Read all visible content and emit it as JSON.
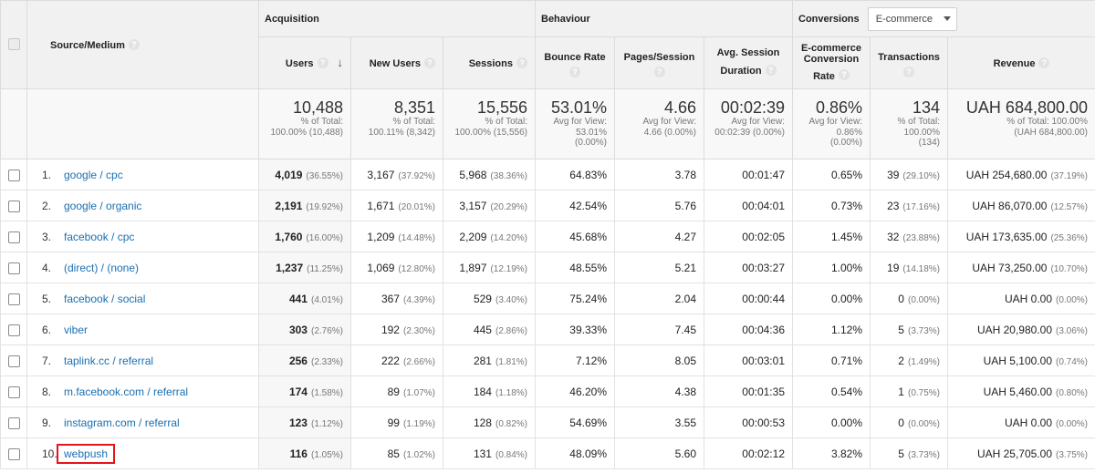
{
  "groups": {
    "acquisition": "Acquisition",
    "behaviour": "Behaviour",
    "conversions": "Conversions",
    "conversions_dropdown": "E-commerce"
  },
  "columns": {
    "source_medium": "Source/Medium",
    "users": "Users",
    "new_users": "New Users",
    "sessions": "Sessions",
    "bounce_rate": "Bounce Rate",
    "pages_session": "Pages/Session",
    "avg_session_l1": "Avg. Session",
    "avg_session_l2": "Duration",
    "ecr_l1": "E-commerce",
    "ecr_l2": "Conversion",
    "ecr_l3": "Rate",
    "transactions": "Transactions",
    "revenue": "Revenue"
  },
  "help_glyph": "?",
  "sort_glyph": "↓",
  "totals": {
    "users": {
      "value": "10,488",
      "l1": "% of Total:",
      "l2": "100.00% (10,488)"
    },
    "new_users": {
      "value": "8,351",
      "l1": "% of Total:",
      "l2": "100.11% (8,342)"
    },
    "sessions": {
      "value": "15,556",
      "l1": "% of Total:",
      "l2": "100.00% (15,556)"
    },
    "bounce_rate": {
      "value": "53.01%",
      "l1": "Avg for View:",
      "l2": "53.01%",
      "l3": "(0.00%)"
    },
    "pages_session": {
      "value": "4.66",
      "l1": "Avg for View:",
      "l2": "4.66 (0.00%)"
    },
    "avg_session": {
      "value": "00:02:39",
      "l1": "Avg for View:",
      "l2": "00:02:39 (0.00%)"
    },
    "ecr": {
      "value": "0.86%",
      "l1": "Avg for View:",
      "l2": "0.86%",
      "l3": "(0.00%)"
    },
    "transactions": {
      "value": "134",
      "l1": "% of Total:",
      "l2": "100.00%",
      "l3": "(134)"
    },
    "revenue": {
      "value": "UAH 684,800.00",
      "l1": "% of Total: 100.00%",
      "l2": "(UAH 684,800.00)"
    }
  },
  "rows": [
    {
      "idx": "1.",
      "src": "google / cpc",
      "users": "4,019",
      "users_pct": "(36.55%)",
      "new_users": "3,167",
      "new_users_pct": "(37.92%)",
      "sessions": "5,968",
      "sessions_pct": "(38.36%)",
      "bounce": "64.83%",
      "pages": "3.78",
      "duration": "00:01:47",
      "ecr": "0.65%",
      "trans": "39",
      "trans_pct": "(29.10%)",
      "revenue": "UAH 254,680.00",
      "revenue_pct": "(37.19%)"
    },
    {
      "idx": "2.",
      "src": "google / organic",
      "users": "2,191",
      "users_pct": "(19.92%)",
      "new_users": "1,671",
      "new_users_pct": "(20.01%)",
      "sessions": "3,157",
      "sessions_pct": "(20.29%)",
      "bounce": "42.54%",
      "pages": "5.76",
      "duration": "00:04:01",
      "ecr": "0.73%",
      "trans": "23",
      "trans_pct": "(17.16%)",
      "revenue": "UAH 86,070.00",
      "revenue_pct": "(12.57%)"
    },
    {
      "idx": "3.",
      "src": "facebook / cpc",
      "users": "1,760",
      "users_pct": "(16.00%)",
      "new_users": "1,209",
      "new_users_pct": "(14.48%)",
      "sessions": "2,209",
      "sessions_pct": "(14.20%)",
      "bounce": "45.68%",
      "pages": "4.27",
      "duration": "00:02:05",
      "ecr": "1.45%",
      "trans": "32",
      "trans_pct": "(23.88%)",
      "revenue": "UAH 173,635.00",
      "revenue_pct": "(25.36%)"
    },
    {
      "idx": "4.",
      "src": "(direct) / (none)",
      "users": "1,237",
      "users_pct": "(11.25%)",
      "new_users": "1,069",
      "new_users_pct": "(12.80%)",
      "sessions": "1,897",
      "sessions_pct": "(12.19%)",
      "bounce": "48.55%",
      "pages": "5.21",
      "duration": "00:03:27",
      "ecr": "1.00%",
      "trans": "19",
      "trans_pct": "(14.18%)",
      "revenue": "UAH 73,250.00",
      "revenue_pct": "(10.70%)"
    },
    {
      "idx": "5.",
      "src": "facebook / social",
      "users": "441",
      "users_pct": "(4.01%)",
      "new_users": "367",
      "new_users_pct": "(4.39%)",
      "sessions": "529",
      "sessions_pct": "(3.40%)",
      "bounce": "75.24%",
      "pages": "2.04",
      "duration": "00:00:44",
      "ecr": "0.00%",
      "trans": "0",
      "trans_pct": "(0.00%)",
      "revenue": "UAH 0.00",
      "revenue_pct": "(0.00%)"
    },
    {
      "idx": "6.",
      "src": "viber",
      "users": "303",
      "users_pct": "(2.76%)",
      "new_users": "192",
      "new_users_pct": "(2.30%)",
      "sessions": "445",
      "sessions_pct": "(2.86%)",
      "bounce": "39.33%",
      "pages": "7.45",
      "duration": "00:04:36",
      "ecr": "1.12%",
      "trans": "5",
      "trans_pct": "(3.73%)",
      "revenue": "UAH 20,980.00",
      "revenue_pct": "(3.06%)"
    },
    {
      "idx": "7.",
      "src": "taplink.cc / referral",
      "users": "256",
      "users_pct": "(2.33%)",
      "new_users": "222",
      "new_users_pct": "(2.66%)",
      "sessions": "281",
      "sessions_pct": "(1.81%)",
      "bounce": "7.12%",
      "pages": "8.05",
      "duration": "00:03:01",
      "ecr": "0.71%",
      "trans": "2",
      "trans_pct": "(1.49%)",
      "revenue": "UAH 5,100.00",
      "revenue_pct": "(0.74%)"
    },
    {
      "idx": "8.",
      "src": "m.facebook.com / referral",
      "users": "174",
      "users_pct": "(1.58%)",
      "new_users": "89",
      "new_users_pct": "(1.07%)",
      "sessions": "184",
      "sessions_pct": "(1.18%)",
      "bounce": "46.20%",
      "pages": "4.38",
      "duration": "00:01:35",
      "ecr": "0.54%",
      "trans": "1",
      "trans_pct": "(0.75%)",
      "revenue": "UAH 5,460.00",
      "revenue_pct": "(0.80%)"
    },
    {
      "idx": "9.",
      "src": "instagram.com / referral",
      "users": "123",
      "users_pct": "(1.12%)",
      "new_users": "99",
      "new_users_pct": "(1.19%)",
      "sessions": "128",
      "sessions_pct": "(0.82%)",
      "bounce": "54.69%",
      "pages": "3.55",
      "duration": "00:00:53",
      "ecr": "0.00%",
      "trans": "0",
      "trans_pct": "(0.00%)",
      "revenue": "UAH 0.00",
      "revenue_pct": "(0.00%)"
    },
    {
      "idx": "10.",
      "src": "webpush",
      "users": "116",
      "users_pct": "(1.05%)",
      "new_users": "85",
      "new_users_pct": "(1.02%)",
      "sessions": "131",
      "sessions_pct": "(0.84%)",
      "bounce": "48.09%",
      "pages": "5.60",
      "duration": "00:02:12",
      "ecr": "3.82%",
      "trans": "5",
      "trans_pct": "(3.73%)",
      "revenue": "UAH 25,705.00",
      "revenue_pct": "(3.75%)",
      "highlighted": true
    }
  ]
}
